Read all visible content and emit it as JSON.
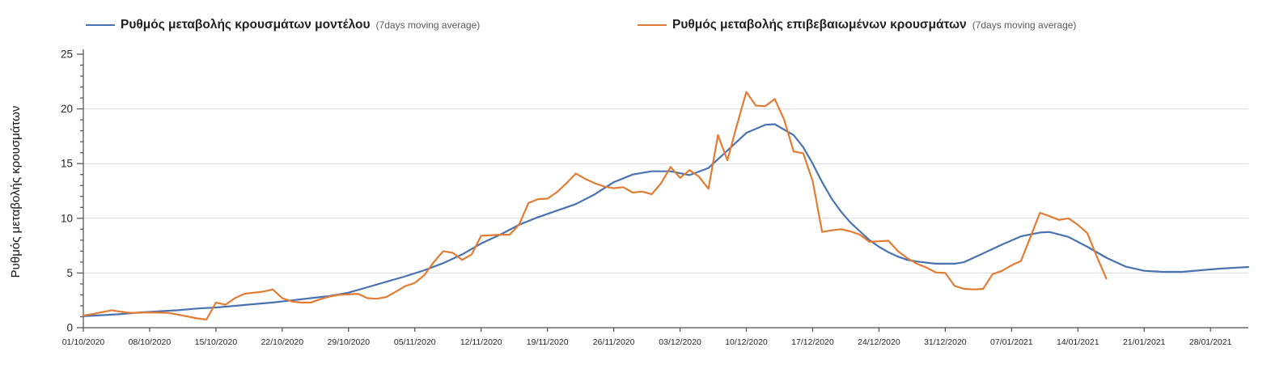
{
  "page": {
    "background": "#ffffff"
  },
  "axis_style": {
    "axis_color": "#4d4d4d",
    "grid_color": "#d9d9d9",
    "tick_label_color": "#262626"
  },
  "chart_data": {
    "type": "line",
    "title": "",
    "xlabel": "",
    "ylabel": "Ρυθμός μεταβολής κρουσμάτων",
    "ylim": [
      0,
      25
    ],
    "y_major_ticks": [
      0,
      5,
      10,
      15,
      20,
      25
    ],
    "y_minor_step": 1,
    "gridline_values": [
      5,
      10,
      15,
      20
    ],
    "grid": "horizontal",
    "legend_position": "top",
    "x_start_date": "01/10/2020",
    "x_end_date": "01/02/2021",
    "x_tick_labels": [
      "01/10/2020",
      "08/10/2020",
      "15/10/2020",
      "22/10/2020",
      "29/10/2020",
      "05/11/2020",
      "12/11/2020",
      "19/11/2020",
      "26/11/2020",
      "03/12/2020",
      "10/12/2020",
      "17/12/2020",
      "24/12/2020",
      "31/12/2020",
      "07/01/2021",
      "14/01/2021",
      "21/01/2021",
      "28/01/2021"
    ],
    "series": [
      {
        "id": "model",
        "name": "Ρυθμός μεταβολής κρουσμάτων μοντέλου",
        "name_suffix": "(7days moving average)",
        "color": "#4a72b0",
        "points": [
          [
            "01/10/2020",
            1.05
          ],
          [
            "03/10/2020",
            1.15
          ],
          [
            "05/10/2020",
            1.25
          ],
          [
            "07/10/2020",
            1.4
          ],
          [
            "09/10/2020",
            1.5
          ],
          [
            "11/10/2020",
            1.6
          ],
          [
            "13/10/2020",
            1.75
          ],
          [
            "15/10/2020",
            1.85
          ],
          [
            "17/10/2020",
            2.0
          ],
          [
            "19/10/2020",
            2.15
          ],
          [
            "21/10/2020",
            2.3
          ],
          [
            "23/10/2020",
            2.5
          ],
          [
            "25/10/2020",
            2.7
          ],
          [
            "27/10/2020",
            2.9
          ],
          [
            "29/10/2020",
            3.2
          ],
          [
            "31/10/2020",
            3.7
          ],
          [
            "02/11/2020",
            4.2
          ],
          [
            "04/11/2020",
            4.7
          ],
          [
            "06/11/2020",
            5.25
          ],
          [
            "08/11/2020",
            5.9
          ],
          [
            "10/11/2020",
            6.7
          ],
          [
            "12/11/2020",
            7.7
          ],
          [
            "14/11/2020",
            8.5
          ],
          [
            "16/11/2020",
            9.4
          ],
          [
            "18/11/2020",
            10.1
          ],
          [
            "20/11/2020",
            10.7
          ],
          [
            "22/11/2020",
            11.3
          ],
          [
            "24/11/2020",
            12.2
          ],
          [
            "26/11/2020",
            13.3
          ],
          [
            "28/11/2020",
            14.0
          ],
          [
            "30/11/2020",
            14.3
          ],
          [
            "02/12/2020",
            14.3
          ],
          [
            "04/12/2020",
            13.95
          ],
          [
            "06/12/2020",
            14.6
          ],
          [
            "08/12/2020",
            16.2
          ],
          [
            "10/12/2020",
            17.8
          ],
          [
            "12/12/2020",
            18.55
          ],
          [
            "13/12/2020",
            18.6
          ],
          [
            "15/12/2020",
            17.6
          ],
          [
            "16/12/2020",
            16.5
          ],
          [
            "17/12/2020",
            15.0
          ],
          [
            "18/12/2020",
            13.3
          ],
          [
            "19/12/2020",
            11.8
          ],
          [
            "20/12/2020",
            10.6
          ],
          [
            "21/12/2020",
            9.6
          ],
          [
            "22/12/2020",
            8.8
          ],
          [
            "23/12/2020",
            8.0
          ],
          [
            "24/12/2020",
            7.4
          ],
          [
            "25/12/2020",
            6.9
          ],
          [
            "26/12/2020",
            6.5
          ],
          [
            "27/12/2020",
            6.2
          ],
          [
            "28/12/2020",
            6.05
          ],
          [
            "29/12/2020",
            5.95
          ],
          [
            "30/12/2020",
            5.85
          ],
          [
            "01/01/2021",
            5.85
          ],
          [
            "02/01/2021",
            6.0
          ],
          [
            "04/01/2021",
            6.8
          ],
          [
            "06/01/2021",
            7.6
          ],
          [
            "08/01/2021",
            8.35
          ],
          [
            "10/01/2021",
            8.7
          ],
          [
            "11/01/2021",
            8.75
          ],
          [
            "13/01/2021",
            8.3
          ],
          [
            "15/01/2021",
            7.4
          ],
          [
            "17/01/2021",
            6.4
          ],
          [
            "19/01/2021",
            5.6
          ],
          [
            "21/01/2021",
            5.2
          ],
          [
            "23/01/2021",
            5.1
          ],
          [
            "25/01/2021",
            5.1
          ],
          [
            "27/01/2021",
            5.25
          ],
          [
            "29/01/2021",
            5.4
          ],
          [
            "01/02/2021",
            5.55
          ]
        ]
      },
      {
        "id": "confirmed",
        "name": "Ρυθμός μεταβολής επιβεβαιωμένων κρουσμάτων",
        "name_suffix": "(7days moving average)",
        "color": "#e27c35",
        "points": [
          [
            "01/10/2020",
            1.1
          ],
          [
            "02/10/2020",
            1.25
          ],
          [
            "04/10/2020",
            1.6
          ],
          [
            "05/10/2020",
            1.45
          ],
          [
            "06/10/2020",
            1.35
          ],
          [
            "08/10/2020",
            1.4
          ],
          [
            "10/10/2020",
            1.35
          ],
          [
            "11/10/2020",
            1.2
          ],
          [
            "13/10/2020",
            0.85
          ],
          [
            "14/10/2020",
            0.75
          ],
          [
            "15/10/2020",
            2.3
          ],
          [
            "16/10/2020",
            2.1
          ],
          [
            "17/10/2020",
            2.7
          ],
          [
            "18/10/2020",
            3.1
          ],
          [
            "19/10/2020",
            3.2
          ],
          [
            "20/10/2020",
            3.3
          ],
          [
            "21/10/2020",
            3.5
          ],
          [
            "22/10/2020",
            2.7
          ],
          [
            "23/10/2020",
            2.4
          ],
          [
            "24/10/2020",
            2.3
          ],
          [
            "25/10/2020",
            2.3
          ],
          [
            "26/10/2020",
            2.6
          ],
          [
            "27/10/2020",
            2.85
          ],
          [
            "28/10/2020",
            3.0
          ],
          [
            "30/10/2020",
            3.1
          ],
          [
            "31/10/2020",
            2.7
          ],
          [
            "01/11/2020",
            2.65
          ],
          [
            "02/11/2020",
            2.8
          ],
          [
            "03/11/2020",
            3.3
          ],
          [
            "04/11/2020",
            3.8
          ],
          [
            "05/11/2020",
            4.1
          ],
          [
            "06/11/2020",
            4.8
          ],
          [
            "07/11/2020",
            6.0
          ],
          [
            "08/11/2020",
            7.0
          ],
          [
            "09/11/2020",
            6.85
          ],
          [
            "10/11/2020",
            6.2
          ],
          [
            "11/11/2020",
            6.7
          ],
          [
            "12/11/2020",
            8.4
          ],
          [
            "14/11/2020",
            8.5
          ],
          [
            "15/11/2020",
            8.5
          ],
          [
            "16/11/2020",
            9.4
          ],
          [
            "17/11/2020",
            11.4
          ],
          [
            "18/11/2020",
            11.75
          ],
          [
            "19/11/2020",
            11.8
          ],
          [
            "20/11/2020",
            12.4
          ],
          [
            "21/11/2020",
            13.2
          ],
          [
            "22/11/2020",
            14.1
          ],
          [
            "23/11/2020",
            13.6
          ],
          [
            "24/11/2020",
            13.2
          ],
          [
            "25/11/2020",
            12.9
          ],
          [
            "26/11/2020",
            12.75
          ],
          [
            "27/11/2020",
            12.85
          ],
          [
            "28/11/2020",
            12.35
          ],
          [
            "29/11/2020",
            12.45
          ],
          [
            "30/11/2020",
            12.2
          ],
          [
            "01/12/2020",
            13.2
          ],
          [
            "02/12/2020",
            14.7
          ],
          [
            "03/12/2020",
            13.7
          ],
          [
            "04/12/2020",
            14.4
          ],
          [
            "05/12/2020",
            13.8
          ],
          [
            "06/12/2020",
            12.7
          ],
          [
            "07/12/2020",
            17.6
          ],
          [
            "08/12/2020",
            15.3
          ],
          [
            "09/12/2020",
            18.5
          ],
          [
            "10/12/2020",
            21.55
          ],
          [
            "11/12/2020",
            20.3
          ],
          [
            "12/12/2020",
            20.25
          ],
          [
            "13/12/2020",
            20.9
          ],
          [
            "14/12/2020",
            19.0
          ],
          [
            "15/12/2020",
            16.1
          ],
          [
            "16/12/2020",
            15.95
          ],
          [
            "17/12/2020",
            13.4
          ],
          [
            "18/12/2020",
            8.75
          ],
          [
            "19/12/2020",
            8.9
          ],
          [
            "20/12/2020",
            9.0
          ],
          [
            "21/12/2020",
            8.8
          ],
          [
            "22/12/2020",
            8.5
          ],
          [
            "23/12/2020",
            7.85
          ],
          [
            "24/12/2020",
            7.9
          ],
          [
            "25/12/2020",
            7.95
          ],
          [
            "26/12/2020",
            7.0
          ],
          [
            "27/12/2020",
            6.35
          ],
          [
            "28/12/2020",
            5.85
          ],
          [
            "29/12/2020",
            5.5
          ],
          [
            "30/12/2020",
            5.05
          ],
          [
            "31/12/2020",
            5.0
          ],
          [
            "01/01/2021",
            3.8
          ],
          [
            "02/01/2021",
            3.55
          ],
          [
            "03/01/2021",
            3.5
          ],
          [
            "04/01/2021",
            3.55
          ],
          [
            "05/01/2021",
            4.9
          ],
          [
            "06/01/2021",
            5.2
          ],
          [
            "07/01/2021",
            5.7
          ],
          [
            "08/01/2021",
            6.1
          ],
          [
            "09/01/2021",
            8.3
          ],
          [
            "10/01/2021",
            10.5
          ],
          [
            "11/01/2021",
            10.2
          ],
          [
            "12/01/2021",
            9.85
          ],
          [
            "13/01/2021",
            10.0
          ],
          [
            "14/01/2021",
            9.4
          ],
          [
            "15/01/2021",
            8.65
          ],
          [
            "16/01/2021",
            6.5
          ],
          [
            "17/01/2021",
            4.5
          ]
        ]
      }
    ]
  }
}
